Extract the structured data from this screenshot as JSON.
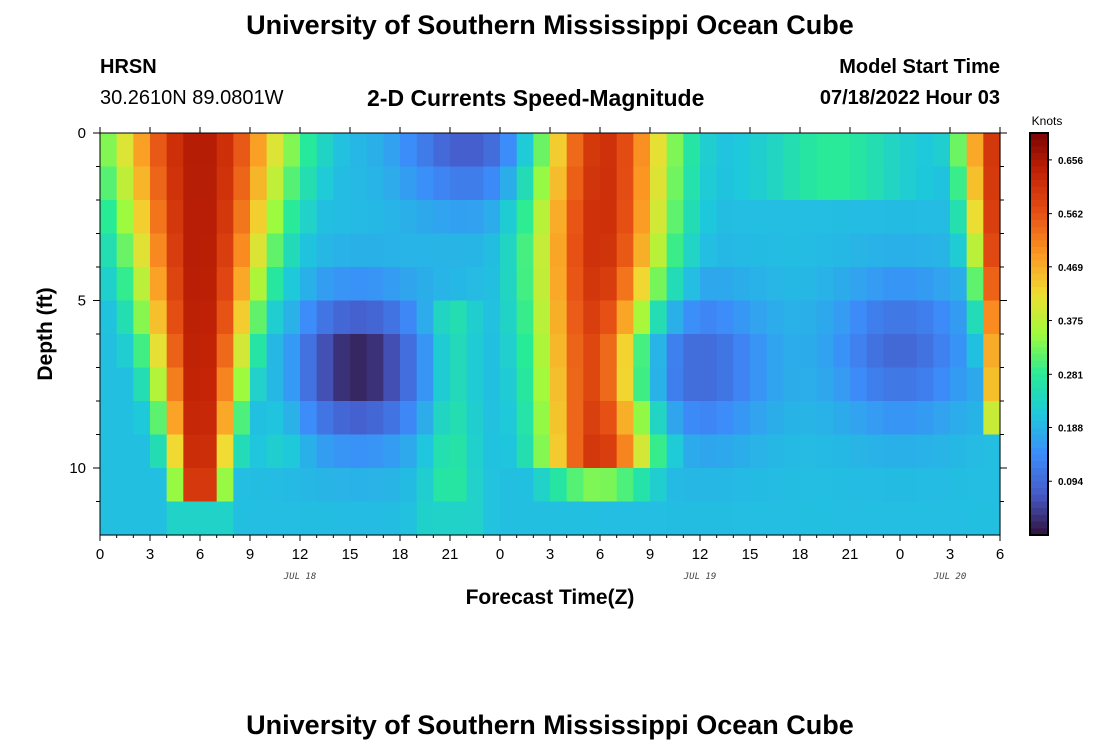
{
  "page": {
    "title_top": "University of Southern Mississippi Ocean Cube",
    "title_bottom": "University of Southern Mississippi Ocean Cube",
    "station": "HRSN",
    "coords": "30.2610N  89.0801W",
    "model_start_label": "Model Start Time",
    "model_start_value": "07/18/2022 Hour 03"
  },
  "chart_data": {
    "type": "heatmap",
    "title": "2-D Currents Speed-Magnitude",
    "xlabel": "Forecast Time(Z)",
    "ylabel": "Depth (ft)",
    "x_tick_labels": [
      "0",
      "3",
      "6",
      "9",
      "12",
      "15",
      "18",
      "21",
      "0",
      "3",
      "6",
      "9",
      "12",
      "15",
      "18",
      "21",
      "0",
      "3",
      "6"
    ],
    "x_hours": [
      0,
      54
    ],
    "date_labels": [
      {
        "label": "JUL 18",
        "hour": 12
      },
      {
        "label": "JUL 19",
        "hour": 36
      },
      {
        "label": "JUL 20",
        "hour": 51
      }
    ],
    "y_ticks": [
      0,
      5,
      10
    ],
    "ylim": [
      0,
      12
    ],
    "colorbar": {
      "label": "Knots",
      "range": [
        0.0,
        0.703
      ],
      "ticks": [
        "0.656",
        "0.562",
        "0.469",
        "0.375",
        "0.281",
        "0.188",
        "0.094"
      ],
      "tick_values": [
        0.656,
        0.562,
        0.469,
        0.375,
        0.281,
        0.188,
        0.094
      ]
    },
    "field": {
      "depth_unit": "ft",
      "speed_unit": "knots",
      "time_step_hours": 1,
      "depth_levels": 12,
      "tidal_cycles": [
        {
          "center_hour": 6,
          "surface_width_h": 5.5,
          "bottom_width_h": 1.5,
          "depth_extent_ft": 10.5,
          "peak": 0.65
        },
        {
          "center_hour": 30,
          "surface_width_h": 4.5,
          "bottom_width_h": 3.5,
          "depth_extent_ft": 9.5,
          "peak": 0.62
        },
        {
          "center_hour": 54,
          "surface_width_h": 2.5,
          "bottom_width_h": 0.8,
          "depth_extent_ft": 8,
          "peak": 0.62
        }
      ],
      "weak_spots": [
        {
          "hour": 15.5,
          "depth_ft": 7,
          "speed": 0.01
        },
        {
          "hour": 22,
          "depth_ft": 0,
          "speed": 0.07
        },
        {
          "hour": 36,
          "depth_ft": 7,
          "speed": 0.09
        },
        {
          "hour": 48,
          "depth_ft": 6.5,
          "speed": 0.09
        }
      ],
      "moderate_bands": [
        {
          "center_hour": 21,
          "width_h": 1.5,
          "depth_from_ft": 5,
          "depth_to_ft": 12,
          "peak": 0.28
        },
        {
          "center_hour": 11,
          "width_h": 1.5,
          "depth_from_ft": 0,
          "depth_to_ft": 10,
          "peak": 0.24
        },
        {
          "center_hour": 44,
          "width_h": 4,
          "depth_from_ft": 0,
          "depth_to_ft": 2,
          "peak": 0.28
        }
      ]
    }
  }
}
